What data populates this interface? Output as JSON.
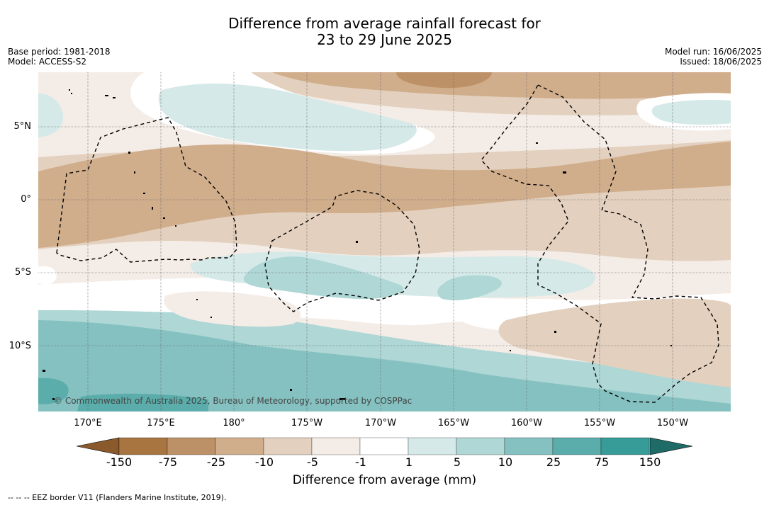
{
  "title": {
    "line1": "Difference from average rainfall forecast for",
    "line2": "23 to 29 June 2025"
  },
  "meta_left": {
    "base_period": "Base period: 1981-2018",
    "model": "Model: ACCESS-S2"
  },
  "meta_right": {
    "model_run": "Model run: 16/06/2025",
    "issued": "Issued: 18/06/2025"
  },
  "map": {
    "latitude_labels": [
      "5°N",
      "0°",
      "5°S",
      "10°S"
    ],
    "longitude_labels": [
      "170°E",
      "175°E",
      "180°",
      "175°W",
      "170°W",
      "165°W",
      "160°W",
      "155°W",
      "150°W"
    ],
    "copyright": "© Commonwealth of Australia 2025, Bureau of Meteorology, supported by COSPPac",
    "gridlines": true
  },
  "colorbar": {
    "ticks": [
      "-150",
      "-75",
      "-25",
      "-10",
      "-5",
      "-1",
      "1",
      "5",
      "10",
      "25",
      "75",
      "150"
    ],
    "colors": [
      "#a87540",
      "#bd9167",
      "#d0ad8b",
      "#e3d0be",
      "#f4ece6",
      "#ffffff",
      "#d5e9e8",
      "#aed7d6",
      "#85c1c0",
      "#5aadaa",
      "#379b97",
      "#2b7f7b"
    ],
    "label": "Difference from average (mm)"
  },
  "footnote": "--  --  -- EEZ border V11 (Flanders Marine Institute, 2019)."
}
